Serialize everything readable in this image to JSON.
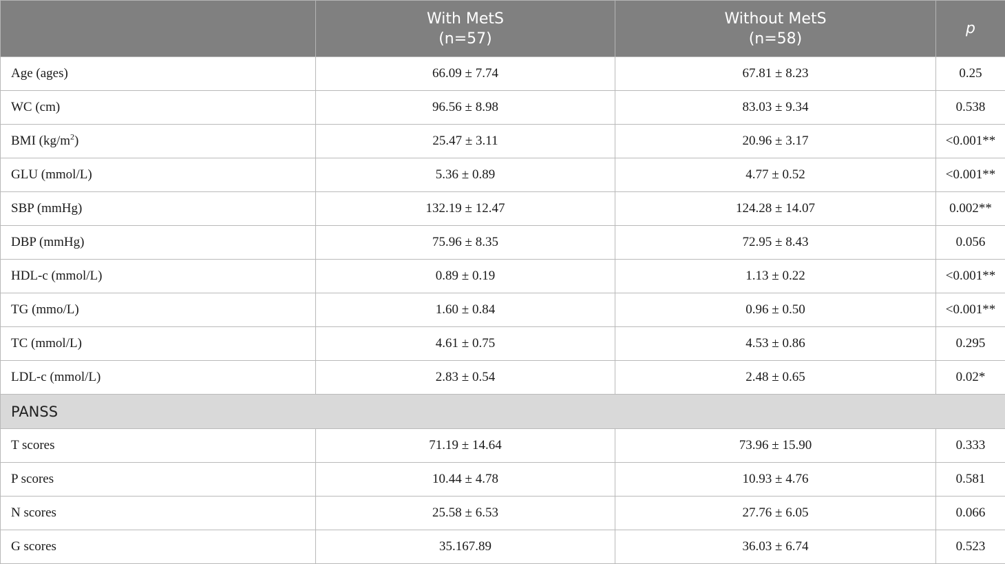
{
  "header": {
    "col1": "",
    "col2_line1": "With MetS",
    "col2_line2": "(n=57)",
    "col3_line1": "Without MetS",
    "col3_line2": "(n=58)",
    "col4": "p"
  },
  "rows": [
    {
      "label": "Age (ages)",
      "with": "66.09 ± 7.74",
      "without": "67.81 ± 8.23",
      "p": "0.25"
    },
    {
      "label": "WC (cm)",
      "with": "96.56 ± 8.98",
      "without": "83.03 ± 9.34",
      "p": "0.538"
    },
    {
      "label_pre": "BMI (kg/m",
      "label_sup": "2",
      "label_post": ")",
      "with": "25.47 ± 3.11",
      "without": "20.96 ± 3.17",
      "p": "<0.001**"
    },
    {
      "label": "GLU (mmol/L)",
      "with": "5.36 ± 0.89",
      "without": "4.77 ± 0.52",
      "p": "<0.001**"
    },
    {
      "label": "SBP (mmHg)",
      "with": "132.19 ± 12.47",
      "without": "124.28 ± 14.07",
      "p": "0.002**"
    },
    {
      "label": "DBP (mmHg)",
      "with": "75.96 ± 8.35",
      "without": "72.95 ± 8.43",
      "p": "0.056"
    },
    {
      "label": "HDL-c (mmol/L)",
      "with": "0.89 ± 0.19",
      "without": "1.13 ± 0.22",
      "p": "<0.001**"
    },
    {
      "label": "TG (mmo/L)",
      "with": "1.60 ± 0.84",
      "without": "0.96 ± 0.50",
      "p": "<0.001**"
    },
    {
      "label": "TC (mmol/L)",
      "with": "4.61 ± 0.75",
      "without": "4.53 ± 0.86",
      "p": "0.295"
    },
    {
      "label": "LDL-c (mmol/L)",
      "with": "2.83 ± 0.54",
      "without": "2.48 ± 0.65",
      "p": "0.02*"
    }
  ],
  "section": {
    "label": "PANSS"
  },
  "panss_rows": [
    {
      "label": "T scores",
      "with": "71.19 ± 14.64",
      "without": "73.96 ± 15.90",
      "p": "0.333"
    },
    {
      "label": "P scores",
      "with": "10.44 ± 4.78",
      "without": "10.93 ± 4.76",
      "p": "0.581"
    },
    {
      "label": "N scores",
      "with": "25.58 ± 6.53",
      "without": "27.76 ± 6.05",
      "p": "0.066"
    },
    {
      "label": "G scores",
      "with": "35.167.89",
      "without": "36.03 ± 6.74",
      "p": "0.523"
    }
  ]
}
